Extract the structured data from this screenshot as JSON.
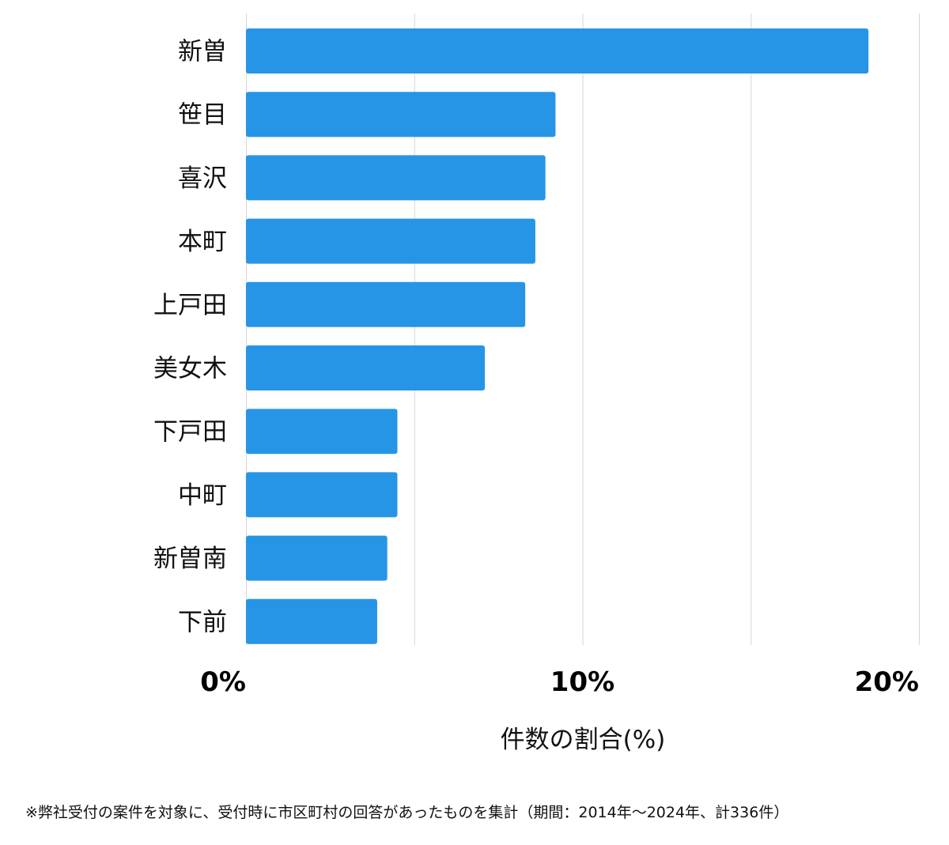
{
  "chart_data": {
    "type": "bar",
    "orientation": "horizontal",
    "categories": [
      "新曽",
      "笹目",
      "喜沢",
      "本町",
      "上戸田",
      "美女木",
      "下戸田",
      "中町",
      "新曽南",
      "下前"
    ],
    "values": [
      18.5,
      9.2,
      8.9,
      8.6,
      8.3,
      7.1,
      4.5,
      4.5,
      4.2,
      3.9
    ],
    "xlim": [
      0,
      20
    ],
    "xticks": [
      0,
      10,
      20
    ],
    "xtick_labels": [
      "0%",
      "10%",
      "20%"
    ],
    "minor_gridlines": [
      5,
      15
    ],
    "xlabel": "件数の割合(%)",
    "ylabel": "",
    "title": "",
    "grid": true,
    "bar_color": "#2695e6",
    "grid_color": "#d6d6d6"
  },
  "footnote": "※弊社受付の案件を対象に、受付時に市区町村の回答があったものを集計（期間：2014年〜2024年、計336件）"
}
